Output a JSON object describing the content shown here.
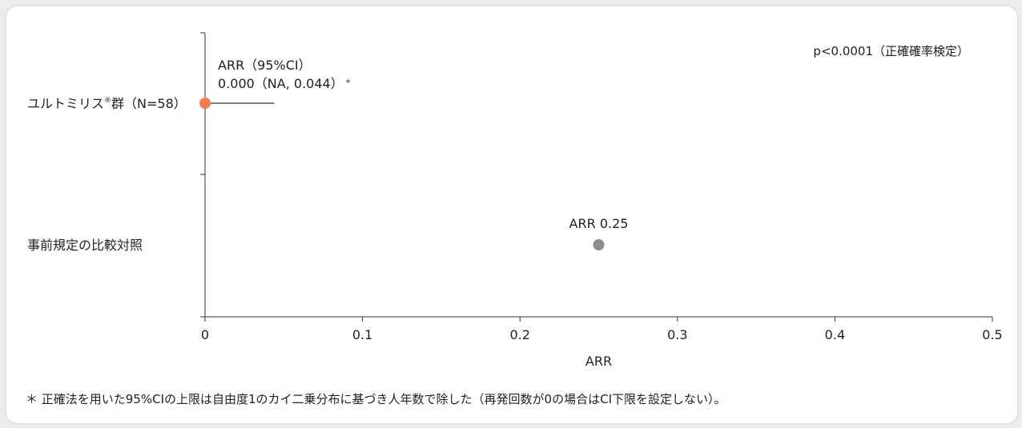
{
  "chart_data": {
    "type": "scatter",
    "xlabel": "ARR",
    "xlim": [
      0,
      0.5
    ],
    "xticks": [
      0,
      0.1,
      0.2,
      0.3,
      0.4,
      0.5
    ],
    "xtick_labels": [
      "0",
      "0.1",
      "0.2",
      "0.3",
      "0.4",
      "0.5"
    ],
    "categories": [
      "ユルトミリス®群（N=58）",
      "事前規定の比較対照"
    ],
    "points": [
      {
        "category": "ユルトミリス®群（N=58）",
        "label_prefix": "ユルトミリス",
        "label_sup": "®",
        "label_suffix": "群（N=58）",
        "x": 0.0,
        "ci_low": null,
        "ci_high": 0.044,
        "color": "#f47c4c",
        "annotation_line1": "ARR（95%CI）",
        "annotation_line2": "0.000（NA, 0.044）",
        "annotation_mark": "*"
      },
      {
        "category": "事前規定の比較対照",
        "label_prefix": "事前規定の比較対照",
        "label_sup": "",
        "label_suffix": "",
        "x": 0.25,
        "color": "#8c8c8c",
        "annotation_line1": "ARR 0.25"
      }
    ],
    "pvalue_text": "p<0.0001（正確確率検定）"
  },
  "footnote": "＊ 正確法を用いた95%CIの上限は自由度1のカイ二乗分布に基づき人年数で除した（再発回数が0の場合はCI下限を設定しない）。"
}
